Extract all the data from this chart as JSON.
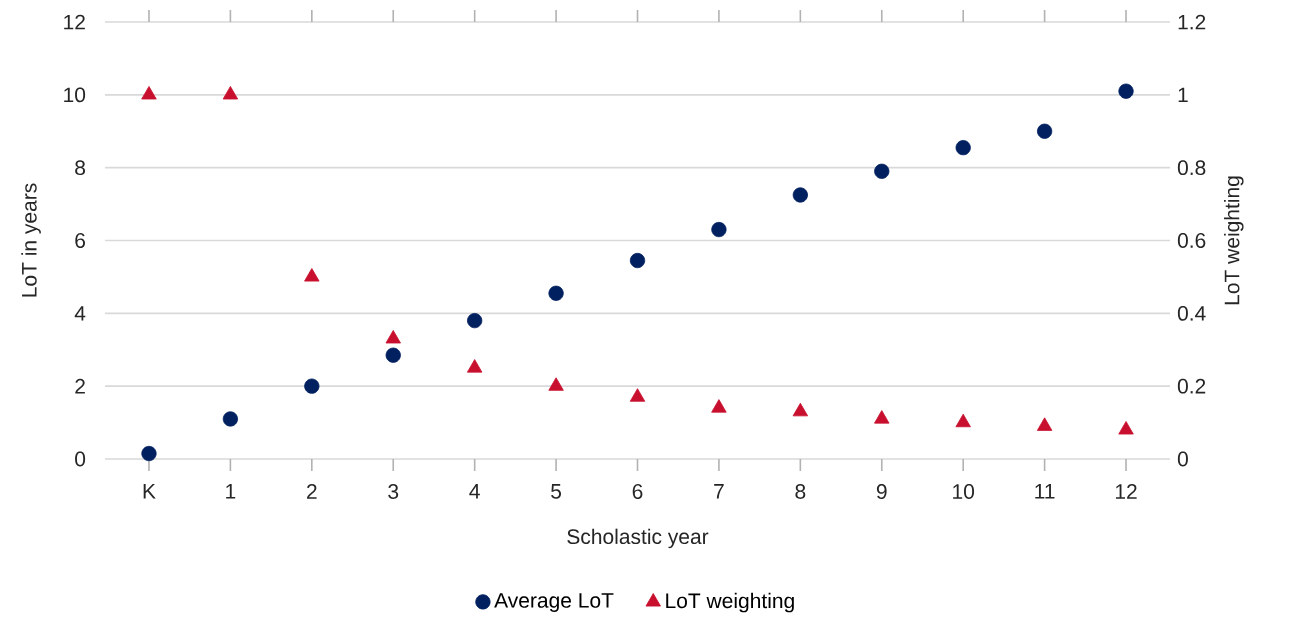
{
  "chart_data": {
    "type": "scatter",
    "xlabel": "Scholastic year",
    "ylabel": "LoT in years",
    "y2label": "LoT weighting",
    "categories": [
      "K",
      "1",
      "2",
      "3",
      "4",
      "5",
      "6",
      "7",
      "8",
      "9",
      "10",
      "11",
      "12"
    ],
    "series": [
      {
        "name": "Average LoT",
        "color": "#002060",
        "marker": "circle",
        "values": [
          0.15,
          1.1,
          2.0,
          2.85,
          3.8,
          4.55,
          5.45,
          6.3,
          7.25,
          7.9,
          8.55,
          9.0,
          10.1
        ]
      },
      {
        "name": "LoT weighting",
        "color": "#c8102e",
        "marker": "triangle",
        "axis": "y2",
        "values": [
          1.0,
          1.0,
          0.5,
          0.33,
          0.25,
          0.2,
          0.17,
          0.14,
          0.13,
          0.11,
          0.1,
          0.09,
          0.08
        ]
      }
    ],
    "ylim": [
      0,
      12
    ],
    "yticks": [
      0,
      2,
      4,
      6,
      8,
      10,
      12
    ],
    "y2lim": [
      0,
      1.2
    ],
    "y2ticks": [
      0,
      0.2,
      0.4,
      0.6,
      0.8,
      1,
      1.2
    ],
    "grid": "y",
    "legend": "bottom"
  }
}
